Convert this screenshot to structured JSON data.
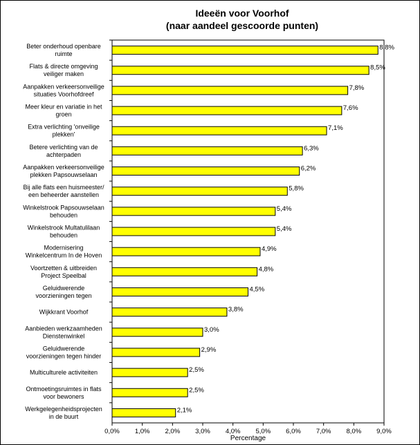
{
  "chart_data": {
    "type": "bar",
    "orientation": "horizontal",
    "title": "Ideeën voor Voorhof\n(naar aandeel gescoorde punten)",
    "xlabel": "Percentage",
    "ylabel": "",
    "xlim": [
      0,
      9
    ],
    "x_ticks": [
      "0,0%",
      "1,0%",
      "2,0%",
      "3,0%",
      "4,0%",
      "5,0%",
      "6,0%",
      "7,0%",
      "8,0%",
      "9,0%"
    ],
    "grid": false,
    "legend": "none",
    "bar_color": "#ffff00",
    "categories": [
      [
        "Beter onderhoud openbare",
        "ruimte"
      ],
      [
        "Flats & directe omgeving",
        "veiliger maken"
      ],
      [
        "Aanpakken verkeersonveilige",
        "situaties Voorhofdreef"
      ],
      [
        "Meer kleur en variatie in het",
        "groen"
      ],
      [
        "Extra verlichting 'onveilige",
        "plekken'"
      ],
      [
        "Betere verlichting van de",
        "achterpaden"
      ],
      [
        "Aanpakken verkeersonveilige",
        "plekken Papsouwselaan"
      ],
      [
        "Bij alle flats een huismeester/",
        "een beheerder aanstellen"
      ],
      [
        "Winkelstrook Papsouwselaan",
        "behouden"
      ],
      [
        "Winkelstrook Multatulilaan",
        "behouden"
      ],
      [
        "Modernisering",
        "Winkelcentrum In de Hoven"
      ],
      [
        "Voortzetten & uitbreiden",
        "Project Speelbal"
      ],
      [
        "Geluidwerende",
        "voorzieningen tegen"
      ],
      [
        "Wijkkrant Voorhof"
      ],
      [
        "Aanbieden werkzaamheden",
        "Dienstenwinkel"
      ],
      [
        "Geluidwerende",
        "voorzieningen tegen hinder"
      ],
      [
        "Multiculturele activiteiten"
      ],
      [
        "Ontmoetingsruimtes in flats",
        "voor bewoners"
      ],
      [
        "Werkgelegenheidsprojecten",
        "in de buurt"
      ]
    ],
    "values": [
      8.8,
      8.5,
      7.8,
      7.6,
      7.1,
      6.3,
      6.2,
      5.8,
      5.4,
      5.4,
      4.9,
      4.8,
      4.5,
      3.8,
      3.0,
      2.9,
      2.5,
      2.5,
      2.1
    ],
    "value_labels": [
      "8,8%",
      "8,5%",
      "7,8%",
      "7,6%",
      "7,1%",
      "6,3%",
      "6,2%",
      "5,8%",
      "5,4%",
      "5,4%",
      "4,9%",
      "4,8%",
      "4,5%",
      "3,8%",
      "3,0%",
      "2,9%",
      "2,5%",
      "2,5%",
      "2,1%"
    ]
  }
}
